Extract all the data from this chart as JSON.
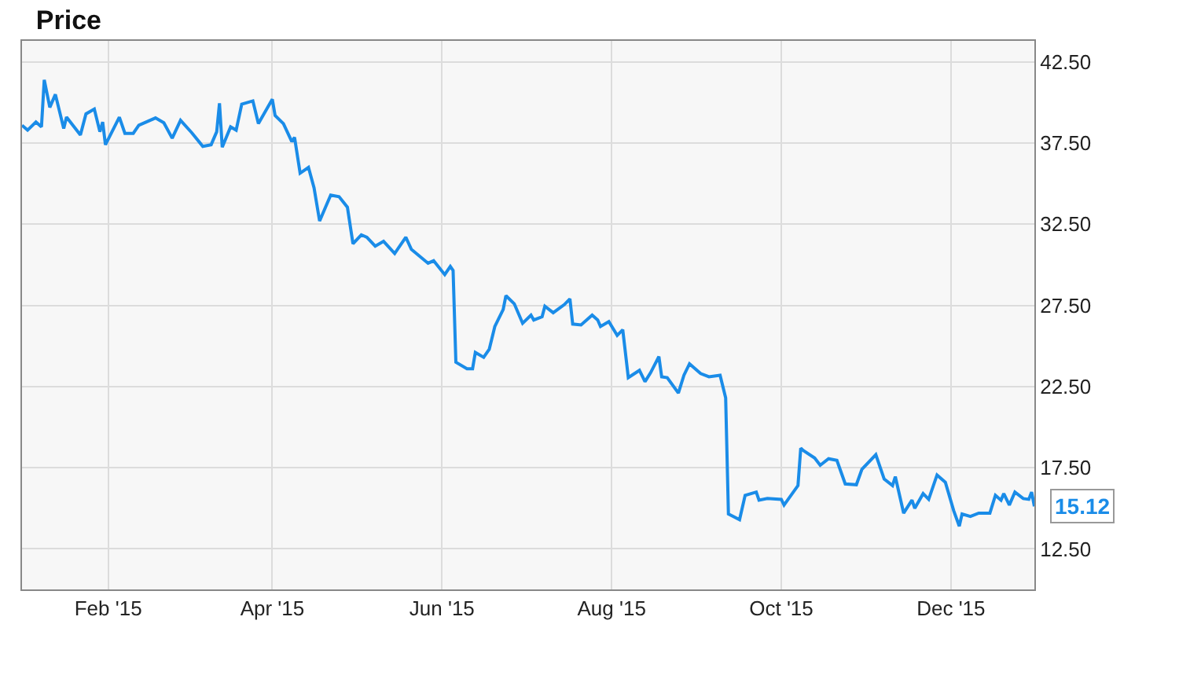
{
  "chart_data": {
    "type": "line",
    "title": "Price",
    "x": [
      "2015-01-01",
      "2015-01-03",
      "2015-01-06",
      "2015-01-08",
      "2015-01-09",
      "2015-01-11",
      "2015-01-13",
      "2015-01-16",
      "2015-01-17",
      "2015-01-22",
      "2015-01-24",
      "2015-01-27",
      "2015-01-29",
      "2015-01-30",
      "2015-01-31",
      "2015-02-05",
      "2015-02-07",
      "2015-02-10",
      "2015-02-12",
      "2015-02-18",
      "2015-02-21",
      "2015-02-24",
      "2015-02-27",
      "2015-03-03",
      "2015-03-07",
      "2015-03-10",
      "2015-03-12",
      "2015-03-13",
      "2015-03-14",
      "2015-03-17",
      "2015-03-19",
      "2015-03-21",
      "2015-03-25",
      "2015-03-27",
      "2015-04-01",
      "2015-04-02",
      "2015-04-05",
      "2015-04-08",
      "2015-04-09",
      "2015-04-11",
      "2015-04-14",
      "2015-04-16",
      "2015-04-18",
      "2015-04-22",
      "2015-04-25",
      "2015-04-28",
      "2015-04-30",
      "2015-05-03",
      "2015-05-05",
      "2015-05-08",
      "2015-05-11",
      "2015-05-15",
      "2015-05-19",
      "2015-05-21",
      "2015-05-27",
      "2015-05-29",
      "2015-06-02",
      "2015-06-04",
      "2015-06-05",
      "2015-06-06",
      "2015-06-10",
      "2015-06-12",
      "2015-06-13",
      "2015-06-16",
      "2015-06-18",
      "2015-06-20",
      "2015-06-23",
      "2015-06-24",
      "2015-06-27",
      "2015-06-30",
      "2015-07-03",
      "2015-07-04",
      "2015-07-07",
      "2015-07-08",
      "2015-07-11",
      "2015-07-15",
      "2015-07-17",
      "2015-07-18",
      "2015-07-21",
      "2015-07-25",
      "2015-07-27",
      "2015-07-28",
      "2015-07-31",
      "2015-08-03",
      "2015-08-05",
      "2015-08-07",
      "2015-08-11",
      "2015-08-13",
      "2015-08-15",
      "2015-08-18",
      "2015-08-19",
      "2015-08-21",
      "2015-08-25",
      "2015-08-27",
      "2015-08-29",
      "2015-09-02",
      "2015-09-05",
      "2015-09-09",
      "2015-09-11",
      "2015-09-12",
      "2015-09-16",
      "2015-09-18",
      "2015-09-22",
      "2015-09-23",
      "2015-09-26",
      "2015-10-01",
      "2015-10-02",
      "2015-10-07",
      "2015-10-08",
      "2015-10-09",
      "2015-10-13",
      "2015-10-15",
      "2015-10-18",
      "2015-10-21",
      "2015-10-24",
      "2015-10-28",
      "2015-10-30",
      "2015-11-04",
      "2015-11-07",
      "2015-11-10",
      "2015-11-11",
      "2015-11-14",
      "2015-11-17",
      "2015-11-18",
      "2015-11-21",
      "2015-11-23",
      "2015-11-26",
      "2015-11-29",
      "2015-12-02",
      "2015-12-04",
      "2015-12-05",
      "2015-12-08",
      "2015-12-11",
      "2015-12-15",
      "2015-12-17",
      "2015-12-19",
      "2015-12-20",
      "2015-12-22",
      "2015-12-24",
      "2015-12-27",
      "2015-12-29",
      "2015-12-30",
      "2015-12-31"
    ],
    "series": [
      {
        "color": "#1a8ce8",
        "values": [
          38.6,
          38.3,
          38.8,
          38.5,
          41.4,
          39.7,
          40.5,
          38.4,
          39.1,
          38.0,
          39.3,
          39.6,
          38.2,
          38.8,
          37.4,
          39.1,
          38.1,
          38.1,
          38.6,
          39.05,
          38.75,
          37.8,
          38.9,
          38.15,
          37.3,
          37.4,
          38.2,
          39.95,
          37.25,
          38.5,
          38.3,
          39.9,
          40.1,
          38.7,
          40.2,
          39.2,
          38.7,
          37.6,
          37.85,
          35.65,
          36.0,
          34.75,
          32.7,
          34.3,
          34.2,
          33.55,
          31.3,
          31.85,
          31.7,
          31.15,
          31.45,
          30.7,
          31.7,
          30.95,
          30.1,
          30.25,
          29.4,
          29.9,
          29.65,
          24.0,
          23.6,
          23.6,
          24.6,
          24.3,
          24.8,
          26.2,
          27.25,
          28.1,
          27.6,
          26.4,
          26.9,
          26.6,
          26.8,
          27.45,
          27.05,
          27.55,
          27.9,
          26.35,
          26.3,
          26.9,
          26.6,
          26.2,
          26.5,
          25.65,
          26.0,
          23.05,
          23.5,
          22.8,
          23.35,
          24.35,
          23.1,
          23.05,
          22.1,
          23.2,
          23.9,
          23.3,
          23.1,
          23.2,
          21.8,
          14.65,
          14.3,
          15.8,
          16.0,
          15.5,
          15.6,
          15.55,
          15.2,
          16.4,
          18.7,
          18.55,
          18.1,
          17.65,
          18.05,
          17.95,
          16.5,
          16.45,
          17.4,
          18.3,
          16.8,
          16.4,
          16.95,
          14.7,
          15.5,
          15.0,
          15.9,
          15.55,
          17.05,
          16.6,
          14.85,
          13.9,
          14.65,
          14.5,
          14.7,
          14.7,
          15.8,
          15.5,
          15.9,
          15.2,
          16.0,
          15.6,
          15.55,
          16.0,
          15.12
        ]
      }
    ],
    "xlim": [
      "2015-01-01",
      "2015-12-31"
    ],
    "xticks": [
      {
        "value": "2015-02-01",
        "label": "Feb '15"
      },
      {
        "value": "2015-04-01",
        "label": "Apr '15"
      },
      {
        "value": "2015-06-01",
        "label": "Jun '15"
      },
      {
        "value": "2015-08-01",
        "label": "Aug '15"
      },
      {
        "value": "2015-10-01",
        "label": "Oct '15"
      },
      {
        "value": "2015-12-01",
        "label": "Dec '15"
      }
    ],
    "ylim": [
      10,
      43.8
    ],
    "yticks": [
      {
        "value": 12.5,
        "label": "12.50"
      },
      {
        "value": 17.5,
        "label": "17.50"
      },
      {
        "value": 22.5,
        "label": "22.50"
      },
      {
        "value": 27.5,
        "label": "27.50"
      },
      {
        "value": 32.5,
        "label": "32.50"
      },
      {
        "value": 37.5,
        "label": "37.50"
      },
      {
        "value": 42.5,
        "label": "42.50"
      }
    ],
    "annotations": [
      {
        "text": "15.12",
        "x": "2015-12-31",
        "y": 15.12
      }
    ],
    "grid": true,
    "marker": "none",
    "line_style": "solid"
  }
}
